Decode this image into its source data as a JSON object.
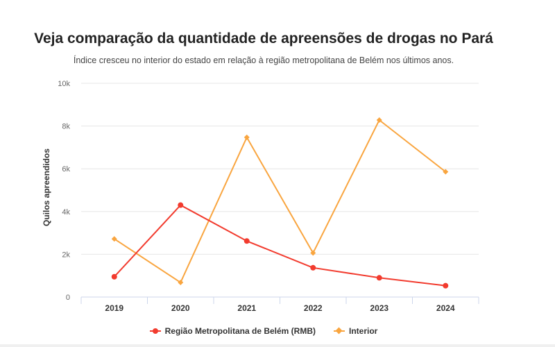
{
  "chart_data": {
    "type": "line",
    "title": "Veja comparação da quantidade de apreensões de drogas no Pará",
    "subtitle": "Índice cresceu no interior do estado em relação à região metropolitana de Belém nos últimos anos.",
    "ylabel": "Quilos apreendidos",
    "xlabel": "",
    "categories": [
      "2019",
      "2020",
      "2021",
      "2022",
      "2023",
      "2024"
    ],
    "ylim": [
      0,
      10000
    ],
    "yticks": [
      0,
      2000,
      4000,
      6000,
      8000,
      10000
    ],
    "ytick_labels": [
      "0",
      "2k",
      "4k",
      "6k",
      "8k",
      "10k"
    ],
    "grid": true,
    "legend_position": "bottom",
    "series": [
      {
        "name": "Região Metropolitana de Belém (RMB)",
        "color": "#f23b2e",
        "marker": "circle",
        "values": [
          950,
          4300,
          2620,
          1370,
          900,
          530
        ]
      },
      {
        "name": "Interior",
        "color": "#f9a53f",
        "marker": "diamond",
        "values": [
          2720,
          680,
          7470,
          2060,
          8280,
          5860
        ]
      }
    ]
  }
}
